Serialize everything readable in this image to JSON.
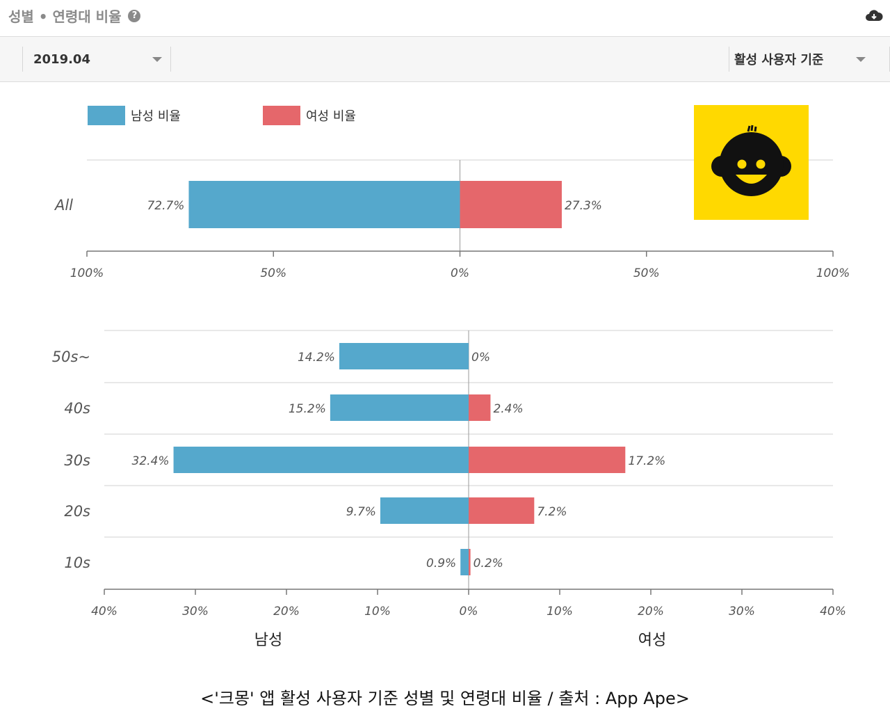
{
  "header": {
    "title": "성별 • 연령대 비율"
  },
  "toolbar": {
    "period": "2019.04",
    "basis": "활성 사용자 기준"
  },
  "caption": "<'크몽' 앱 활성 사용자 기준 성별 및 연령대 비율 / 출처 : App Ape>",
  "colors": {
    "male": "#55a8cc",
    "female": "#e5676b",
    "logo_bg": "#ffd900"
  },
  "chart_data": [
    {
      "type": "bar",
      "orientation": "horizontal-diverging",
      "legend": [
        "남성 비율",
        "여성 비율"
      ],
      "legend_position": "top-left",
      "categories": [
        "All"
      ],
      "series": [
        {
          "name": "남성 비율",
          "values": [
            72.7
          ],
          "labels": [
            "72.7%"
          ]
        },
        {
          "name": "여성 비율",
          "values": [
            27.3
          ],
          "labels": [
            "27.3%"
          ]
        }
      ],
      "xlim": [
        -100,
        100
      ],
      "ticks": [
        -100,
        -50,
        0,
        50,
        100
      ],
      "tick_labels": [
        "100%",
        "50%",
        "0%",
        "50%",
        "100%"
      ]
    },
    {
      "type": "bar",
      "orientation": "horizontal-diverging",
      "categories": [
        "50s~",
        "40s",
        "30s",
        "20s",
        "10s"
      ],
      "series": [
        {
          "name": "남성",
          "values": [
            14.2,
            15.2,
            32.4,
            9.7,
            0.9
          ],
          "labels": [
            "14.2%",
            "15.2%",
            "32.4%",
            "9.7%",
            "0.9%"
          ]
        },
        {
          "name": "여성",
          "values": [
            0,
            2.4,
            17.2,
            7.2,
            0.2
          ],
          "labels": [
            "0%",
            "2.4%",
            "17.2%",
            "7.2%",
            "0.2%"
          ]
        }
      ],
      "xlim": [
        -40,
        40
      ],
      "ticks": [
        -40,
        -30,
        -20,
        -10,
        0,
        10,
        20,
        30,
        40
      ],
      "tick_labels": [
        "40%",
        "30%",
        "20%",
        "10%",
        "0%",
        "10%",
        "20%",
        "30%",
        "40%"
      ],
      "side_labels": [
        "남성",
        "여성"
      ]
    }
  ]
}
